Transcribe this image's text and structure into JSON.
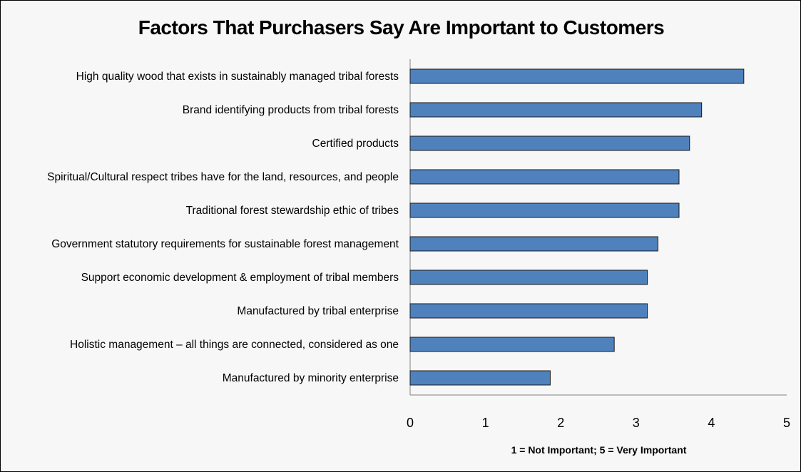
{
  "chart_data": {
    "type": "bar",
    "orientation": "horizontal",
    "title": "Factors That Purchasers Say Are Important to Customers",
    "xlabel": "1 = Not Important; 5 = Very Important",
    "ylabel": "",
    "xlim": [
      0,
      5
    ],
    "ticks": [
      "0",
      "1",
      "2",
      "3",
      "4",
      "5"
    ],
    "grid": false,
    "bar_color": "#4f81bd",
    "categories": [
      "High quality wood that exists in sustainably managed tribal forests",
      "Brand identifying products from tribal forests",
      "Certified products",
      "Spiritual/Cultural respect tribes have for the land, resources, and people",
      "Traditional forest stewardship ethic of tribes",
      "Government statutory requirements for sustainable forest  management",
      "Support economic development & employment of tribal members",
      "Manufactured by tribal enterprise",
      "Holistic management – all things are connected, considered as one",
      "Manufactured by minority enterprise"
    ],
    "values": [
      4.43,
      3.87,
      3.71,
      3.57,
      3.57,
      3.29,
      3.15,
      3.15,
      2.71,
      1.86
    ]
  }
}
